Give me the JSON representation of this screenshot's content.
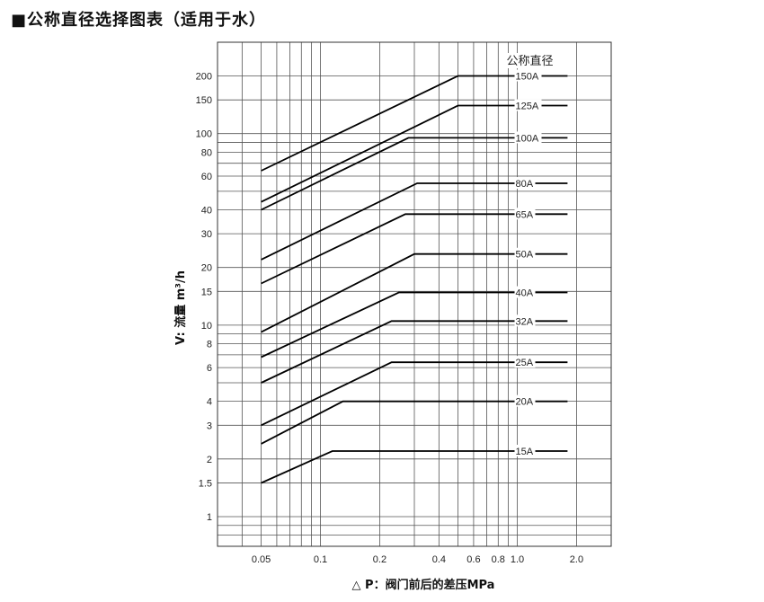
{
  "title": "■公称直径选择图表（适用于水）",
  "chart_data": {
    "type": "line",
    "title": "■公称直径选择图表（适用于水）",
    "xlabel": "△ P：阀门前后的差压MPa",
    "ylabel": "V: 流量 m³/h",
    "x_scale": "log",
    "y_scale": "log",
    "xlim": [
      0.03,
      3.0
    ],
    "ylim": [
      0.7,
      300
    ],
    "x_ticks": [
      {
        "value": 0.05,
        "label": "0.05"
      },
      {
        "value": 0.1,
        "label": "0.1"
      },
      {
        "value": 0.2,
        "label": "0.2"
      },
      {
        "value": 0.4,
        "label": "0.4"
      },
      {
        "value": 0.6,
        "label": "0.6"
      },
      {
        "value": 0.8,
        "label": "0.8"
      },
      {
        "value": 1.0,
        "label": "1.0"
      },
      {
        "value": 2.0,
        "label": "2.0"
      }
    ],
    "y_ticks": [
      {
        "value": 1,
        "label": "1"
      },
      {
        "value": 1.5,
        "label": "1.5"
      },
      {
        "value": 2,
        "label": "2"
      },
      {
        "value": 3,
        "label": "3"
      },
      {
        "value": 4,
        "label": "4"
      },
      {
        "value": 6,
        "label": "6"
      },
      {
        "value": 8,
        "label": "8"
      },
      {
        "value": 10,
        "label": "10"
      },
      {
        "value": 15,
        "label": "15"
      },
      {
        "value": 20,
        "label": "20"
      },
      {
        "value": 30,
        "label": "30"
      },
      {
        "value": 40,
        "label": "40"
      },
      {
        "value": 60,
        "label": "60"
      },
      {
        "value": 80,
        "label": "80"
      },
      {
        "value": 100,
        "label": "100"
      },
      {
        "value": 150,
        "label": "150"
      },
      {
        "value": 200,
        "label": "200"
      }
    ],
    "grid": true,
    "legend_title": "公称直径",
    "series": [
      {
        "name": "150A",
        "points": [
          [
            0.05,
            64
          ],
          [
            0.5,
            200
          ],
          [
            1.8,
            200
          ]
        ]
      },
      {
        "name": "125A",
        "points": [
          [
            0.05,
            44
          ],
          [
            0.5,
            140
          ],
          [
            1.8,
            140
          ]
        ]
      },
      {
        "name": "100A",
        "points": [
          [
            0.05,
            40
          ],
          [
            0.28,
            95
          ],
          [
            1.8,
            95
          ]
        ]
      },
      {
        "name": "80A",
        "points": [
          [
            0.05,
            22
          ],
          [
            0.31,
            55
          ],
          [
            1.8,
            55
          ]
        ]
      },
      {
        "name": "65A",
        "points": [
          [
            0.05,
            16.5
          ],
          [
            0.27,
            38
          ],
          [
            1.8,
            38
          ]
        ]
      },
      {
        "name": "50A",
        "points": [
          [
            0.05,
            9.2
          ],
          [
            0.3,
            23.5
          ],
          [
            1.8,
            23.5
          ]
        ]
      },
      {
        "name": "40A",
        "points": [
          [
            0.05,
            6.8
          ],
          [
            0.25,
            14.8
          ],
          [
            1.8,
            14.8
          ]
        ]
      },
      {
        "name": "32A",
        "points": [
          [
            0.05,
            5.0
          ],
          [
            0.23,
            10.5
          ],
          [
            1.8,
            10.5
          ]
        ]
      },
      {
        "name": "25A",
        "points": [
          [
            0.05,
            3.0
          ],
          [
            0.23,
            6.4
          ],
          [
            1.8,
            6.4
          ]
        ]
      },
      {
        "name": "20A",
        "points": [
          [
            0.05,
            2.4
          ],
          [
            0.13,
            4.0
          ],
          [
            1.8,
            4.0
          ]
        ]
      },
      {
        "name": "15A",
        "points": [
          [
            0.05,
            1.5
          ],
          [
            0.115,
            2.2
          ],
          [
            1.8,
            2.2
          ]
        ]
      }
    ]
  }
}
